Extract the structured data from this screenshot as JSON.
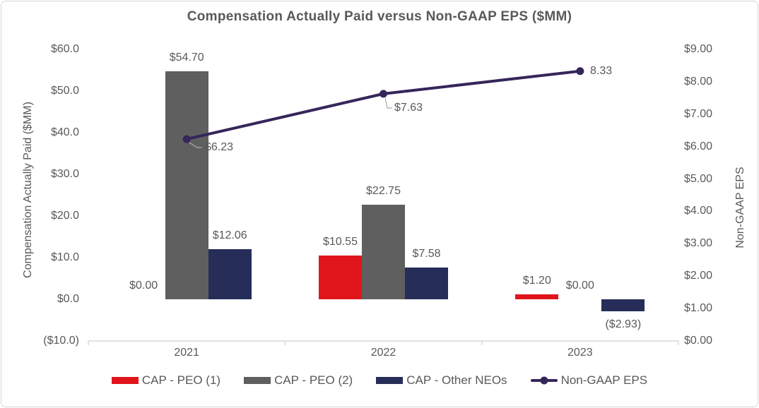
{
  "chart_data": {
    "type": "bar",
    "subtype": "grouped-bar-with-line-dual-axis",
    "title": "Compensation Actually Paid versus Non-GAAP EPS ($MM)",
    "categories": [
      "2021",
      "2022",
      "2023"
    ],
    "series": [
      {
        "name": "CAP - PEO (1)",
        "kind": "bar",
        "axis": "left",
        "color": "#e0151c",
        "values": [
          0.0,
          10.55,
          1.2
        ],
        "labels": [
          "$0.00",
          "$10.55",
          "$1.20"
        ]
      },
      {
        "name": "CAP - PEO (2)",
        "kind": "bar",
        "axis": "left",
        "color": "#5f5f5f",
        "values": [
          54.7,
          22.75,
          0.0
        ],
        "labels": [
          "$54.70",
          "$22.75",
          "$0.00"
        ]
      },
      {
        "name": "CAP - Other NEOs",
        "kind": "bar",
        "axis": "left",
        "color": "#262d58",
        "values": [
          12.06,
          7.58,
          -2.93
        ],
        "labels": [
          "$12.06",
          "$7.58",
          "($2.93)"
        ]
      },
      {
        "name": "Non-GAAP EPS",
        "kind": "line",
        "axis": "right",
        "color": "#35265a",
        "values": [
          6.23,
          7.63,
          8.33
        ],
        "labels": [
          "$6.23",
          "$7.63",
          "8.33"
        ]
      }
    ],
    "left_axis": {
      "title": "Compensation Actually Paid ($MM)",
      "min": -10,
      "max": 60,
      "ticks": [
        "$60.0",
        "$50.0",
        "$40.0",
        "$30.0",
        "$20.0",
        "$10.0",
        "$0.0",
        "($10.0)"
      ]
    },
    "right_axis": {
      "title": "Non-GAAP EPS",
      "min": 0,
      "max": 9,
      "ticks": [
        "$9.00",
        "$8.00",
        "$7.00",
        "$6.00",
        "$5.00",
        "$4.00",
        "$3.00",
        "$2.00",
        "$1.00",
        "$0.00"
      ]
    },
    "grid": false,
    "legend_position": "bottom",
    "legend": [
      "CAP - PEO (1)",
      "CAP - PEO (2)",
      "CAP - Other NEOs",
      "Non-GAAP EPS"
    ]
  },
  "style": {
    "text_color": "#595959",
    "axis_line_color": "#d9d9d9",
    "leader_line_color": "#ababab"
  }
}
